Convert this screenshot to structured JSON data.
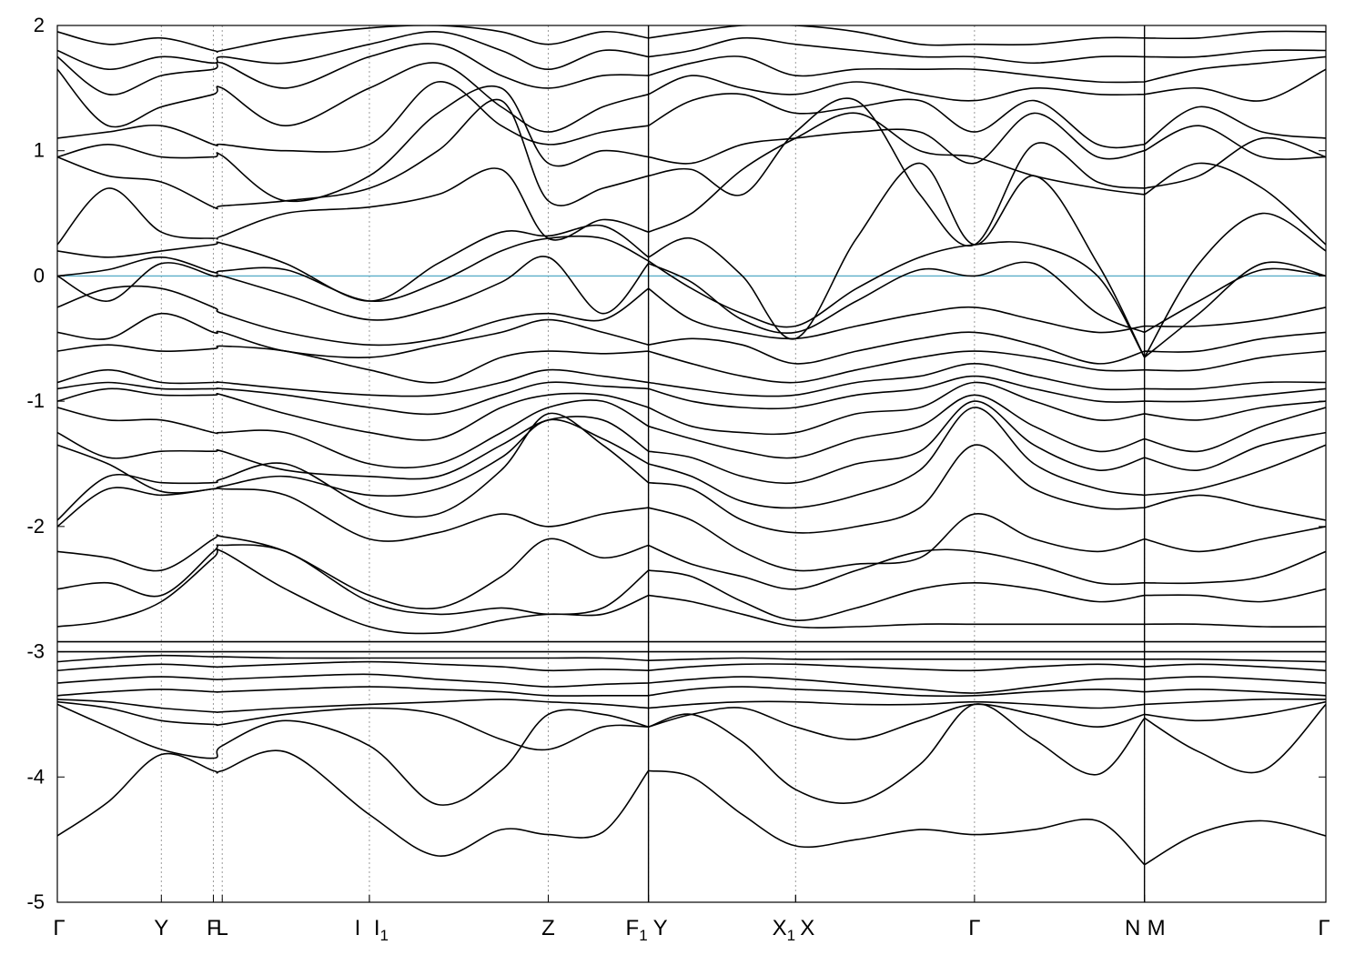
{
  "chart_data": {
    "type": "line",
    "title": "",
    "xlabel": "",
    "ylabel": "",
    "ylim": [
      -5,
      2
    ],
    "yticks": [
      2,
      1,
      0,
      -1,
      -2,
      -3,
      -4,
      -5
    ],
    "ytick_labels": [
      "2",
      "1",
      "0",
      "-1",
      "-2",
      "-3",
      "-4",
      "-5"
    ],
    "fermi_level": 0,
    "fermi_color": "#5aaec8",
    "band_color": "#000000",
    "grid": false,
    "high_symmetry_points": [
      {
        "label": "Γ",
        "sub": "",
        "x": 0.0
      },
      {
        "label": "Y",
        "sub": "",
        "x": 0.082
      },
      {
        "label": "F",
        "sub": "",
        "x": 0.123
      },
      {
        "label": "L",
        "sub": "",
        "x": 0.13
      },
      {
        "label": "I",
        "sub": "",
        "x": 0.246
      },
      {
        "label": "I",
        "sub": "1",
        "x": 0.246
      },
      {
        "label": "Z",
        "sub": "",
        "x": 0.387
      },
      {
        "label": "F",
        "sub": "1",
        "x": 0.466
      },
      {
        "label": "Y",
        "sub": "",
        "x": 0.466
      },
      {
        "label": "X",
        "sub": "1",
        "x": 0.582
      },
      {
        "label": "X",
        "sub": "",
        "x": 0.582
      },
      {
        "label": "Γ",
        "sub": "",
        "x": 0.723
      },
      {
        "label": "N",
        "sub": "",
        "x": 0.857
      },
      {
        "label": "M",
        "sub": "",
        "x": 0.857
      },
      {
        "label": "Γ",
        "sub": "",
        "x": 1.0
      }
    ],
    "segment_breaks": [
      0.466,
      0.857
    ],
    "x_sample": [
      0.0,
      0.04,
      0.082,
      0.123,
      0.13,
      0.18,
      0.246,
      0.3,
      0.35,
      0.387,
      0.43,
      0.466,
      0.5,
      0.54,
      0.582,
      0.63,
      0.68,
      0.723,
      0.77,
      0.82,
      0.857,
      0.9,
      0.95,
      1.0
    ],
    "series": [
      {
        "values": [
          -4.47,
          -4.2,
          -3.82,
          -3.95,
          -3.95,
          -3.8,
          -4.3,
          -4.63,
          -4.42,
          -4.46,
          -4.44,
          -3.95,
          -4.0,
          -4.3,
          -4.55,
          -4.5,
          -4.42,
          -4.46,
          -4.42,
          -4.35,
          -4.7,
          -4.45,
          -4.35,
          -4.47
        ]
      },
      {
        "values": [
          -3.42,
          -3.6,
          -3.78,
          -3.85,
          -3.75,
          -3.55,
          -3.75,
          -4.22,
          -3.95,
          -3.5,
          -3.5,
          -3.6,
          -3.5,
          -3.72,
          -4.1,
          -4.2,
          -3.9,
          -3.42,
          -3.7,
          -3.98,
          -3.53,
          -3.8,
          -3.95,
          -3.42
        ]
      },
      {
        "values": [
          -3.4,
          -3.45,
          -3.55,
          -3.58,
          -3.58,
          -3.5,
          -3.45,
          -3.5,
          -3.7,
          -3.78,
          -3.6,
          -3.6,
          -3.5,
          -3.45,
          -3.6,
          -3.7,
          -3.55,
          -3.42,
          -3.5,
          -3.6,
          -3.5,
          -3.55,
          -3.5,
          -3.4
        ]
      },
      {
        "values": [
          -3.38,
          -3.4,
          -3.45,
          -3.48,
          -3.48,
          -3.45,
          -3.42,
          -3.4,
          -3.38,
          -3.4,
          -3.42,
          -3.45,
          -3.42,
          -3.4,
          -3.4,
          -3.42,
          -3.42,
          -3.4,
          -3.42,
          -3.45,
          -3.42,
          -3.4,
          -3.38,
          -3.38
        ]
      },
      {
        "values": [
          -3.35,
          -3.32,
          -3.3,
          -3.32,
          -3.32,
          -3.3,
          -3.28,
          -3.3,
          -3.32,
          -3.35,
          -3.35,
          -3.35,
          -3.3,
          -3.28,
          -3.3,
          -3.32,
          -3.35,
          -3.35,
          -3.32,
          -3.3,
          -3.32,
          -3.3,
          -3.32,
          -3.35
        ]
      },
      {
        "values": [
          -3.25,
          -3.22,
          -3.2,
          -3.22,
          -3.22,
          -3.2,
          -3.18,
          -3.22,
          -3.25,
          -3.28,
          -3.26,
          -3.25,
          -3.22,
          -3.2,
          -3.22,
          -3.26,
          -3.3,
          -3.33,
          -3.28,
          -3.22,
          -3.22,
          -3.2,
          -3.22,
          -3.25
        ]
      },
      {
        "values": [
          -3.15,
          -3.12,
          -3.1,
          -3.12,
          -3.12,
          -3.1,
          -3.08,
          -3.1,
          -3.12,
          -3.15,
          -3.14,
          -3.15,
          -3.12,
          -3.1,
          -3.1,
          -3.12,
          -3.14,
          -3.15,
          -3.12,
          -3.1,
          -3.12,
          -3.1,
          -3.12,
          -3.15
        ]
      },
      {
        "values": [
          -3.08,
          -3.05,
          -3.03,
          -3.04,
          -3.04,
          -3.05,
          -3.05,
          -3.05,
          -3.05,
          -3.05,
          -3.05,
          -3.07,
          -3.06,
          -3.05,
          -3.06,
          -3.06,
          -3.06,
          -3.06,
          -3.06,
          -3.06,
          -3.06,
          -3.06,
          -3.07,
          -3.08
        ]
      },
      {
        "values": [
          -3.0,
          -3.0,
          -3.0,
          -3.0,
          -3.0,
          -3.0,
          -3.0,
          -3.0,
          -3.0,
          -3.0,
          -3.0,
          -3.0,
          -3.0,
          -3.0,
          -3.0,
          -3.0,
          -3.0,
          -3.0,
          -3.0,
          -3.0,
          -3.0,
          -3.0,
          -3.0,
          -3.0
        ]
      },
      {
        "values": [
          -2.92,
          -2.92,
          -2.92,
          -2.92,
          -2.92,
          -2.92,
          -2.92,
          -2.92,
          -2.92,
          -2.92,
          -2.92,
          -2.92,
          -2.92,
          -2.92,
          -2.92,
          -2.92,
          -2.92,
          -2.92,
          -2.92,
          -2.92,
          -2.92,
          -2.92,
          -2.92,
          -2.92
        ]
      },
      {
        "values": [
          -2.8,
          -2.75,
          -2.6,
          -2.25,
          -2.2,
          -2.5,
          -2.8,
          -2.85,
          -2.75,
          -2.7,
          -2.7,
          -2.55,
          -2.6,
          -2.7,
          -2.8,
          -2.8,
          -2.78,
          -2.78,
          -2.78,
          -2.78,
          -2.78,
          -2.78,
          -2.8,
          -2.8
        ]
      },
      {
        "values": [
          -2.5,
          -2.45,
          -2.55,
          -2.2,
          -2.15,
          -2.2,
          -2.6,
          -2.7,
          -2.65,
          -2.7,
          -2.65,
          -2.35,
          -2.4,
          -2.6,
          -2.75,
          -2.65,
          -2.5,
          -2.45,
          -2.5,
          -2.6,
          -2.55,
          -2.55,
          -2.6,
          -2.5
        ]
      },
      {
        "values": [
          -2.2,
          -2.25,
          -2.35,
          -2.1,
          -2.08,
          -2.2,
          -2.55,
          -2.65,
          -2.4,
          -2.1,
          -2.25,
          -2.15,
          -2.3,
          -2.4,
          -2.5,
          -2.35,
          -2.2,
          -2.2,
          -2.3,
          -2.45,
          -2.45,
          -2.45,
          -2.4,
          -2.2
        ]
      },
      {
        "values": [
          -2.0,
          -1.7,
          -1.75,
          -1.7,
          -1.7,
          -1.75,
          -2.1,
          -2.05,
          -1.9,
          -2.0,
          -1.9,
          -1.85,
          -1.95,
          -2.2,
          -2.35,
          -2.3,
          -2.25,
          -1.9,
          -2.1,
          -2.2,
          -2.1,
          -2.2,
          -2.1,
          -2.0
        ]
      },
      {
        "values": [
          -1.95,
          -1.6,
          -1.65,
          -1.65,
          -1.62,
          -1.5,
          -1.85,
          -1.9,
          -1.55,
          -1.1,
          -1.35,
          -1.65,
          -1.7,
          -1.95,
          -2.05,
          -2.0,
          -1.85,
          -1.35,
          -1.7,
          -1.85,
          -1.85,
          -1.75,
          -1.85,
          -1.95
        ]
      },
      {
        "values": [
          -1.35,
          -1.5,
          -1.72,
          -1.7,
          -1.68,
          -1.6,
          -1.75,
          -1.7,
          -1.45,
          -1.15,
          -1.3,
          -1.5,
          -1.6,
          -1.8,
          -1.85,
          -1.75,
          -1.55,
          -1.05,
          -1.5,
          -1.7,
          -1.75,
          -1.7,
          -1.55,
          -1.35
        ]
      },
      {
        "values": [
          -1.25,
          -1.45,
          -1.4,
          -1.4,
          -1.4,
          -1.55,
          -1.6,
          -1.6,
          -1.35,
          -1.15,
          -1.15,
          -1.4,
          -1.45,
          -1.6,
          -1.65,
          -1.5,
          -1.4,
          -1.0,
          -1.35,
          -1.55,
          -1.45,
          -1.55,
          -1.35,
          -1.25
        ]
      },
      {
        "values": [
          -1.05,
          -1.15,
          -1.15,
          -1.25,
          -1.25,
          -1.25,
          -1.5,
          -1.5,
          -1.25,
          -1.05,
          -1.0,
          -1.2,
          -1.3,
          -1.4,
          -1.45,
          -1.3,
          -1.2,
          -0.95,
          -1.2,
          -1.4,
          -1.3,
          -1.4,
          -1.2,
          -1.05
        ]
      },
      {
        "values": [
          -1.0,
          -0.9,
          -0.95,
          -0.95,
          -0.95,
          -1.1,
          -1.25,
          -1.3,
          -1.05,
          -0.95,
          -0.95,
          -1.05,
          -1.2,
          -1.25,
          -1.25,
          -1.1,
          -1.05,
          -0.85,
          -1.0,
          -1.15,
          -1.1,
          -1.15,
          -1.05,
          -1.0
        ]
      },
      {
        "values": [
          -0.9,
          -0.85,
          -0.9,
          -0.9,
          -0.9,
          -0.95,
          -1.05,
          -1.1,
          -0.95,
          -0.85,
          -0.88,
          -0.9,
          -1.0,
          -1.05,
          -1.05,
          -0.95,
          -0.9,
          -0.8,
          -0.9,
          -1.0,
          -1.0,
          -1.0,
          -0.95,
          -0.9
        ]
      },
      {
        "values": [
          -0.85,
          -0.75,
          -0.85,
          -0.85,
          -0.85,
          -0.9,
          -0.95,
          -0.95,
          -0.85,
          -0.75,
          -0.8,
          -0.85,
          -0.9,
          -0.95,
          -0.95,
          -0.85,
          -0.8,
          -0.7,
          -0.8,
          -0.9,
          -0.9,
          -0.9,
          -0.85,
          -0.85
        ]
      },
      {
        "values": [
          -0.6,
          -0.55,
          -0.6,
          -0.58,
          -0.56,
          -0.6,
          -0.75,
          -0.85,
          -0.65,
          -0.6,
          -0.62,
          -0.6,
          -0.7,
          -0.8,
          -0.85,
          -0.75,
          -0.65,
          -0.6,
          -0.65,
          -0.75,
          -0.75,
          -0.75,
          -0.65,
          -0.6
        ]
      },
      {
        "values": [
          -0.45,
          -0.5,
          -0.3,
          -0.45,
          -0.45,
          -0.6,
          -0.65,
          -0.55,
          -0.45,
          -0.35,
          -0.45,
          -0.55,
          -0.5,
          -0.55,
          -0.7,
          -0.6,
          -0.5,
          -0.45,
          -0.55,
          -0.7,
          -0.6,
          -0.6,
          -0.5,
          -0.45
        ]
      },
      {
        "values": [
          -0.25,
          -0.1,
          -0.1,
          -0.25,
          -0.3,
          -0.45,
          -0.55,
          -0.5,
          -0.35,
          -0.3,
          -0.35,
          -0.1,
          -0.35,
          -0.45,
          -0.5,
          -0.4,
          -0.3,
          -0.25,
          -0.35,
          -0.45,
          -0.4,
          -0.4,
          -0.35,
          -0.25
        ]
      },
      {
        "values": [
          0.0,
          -0.2,
          0.1,
          0.0,
          0.0,
          -0.15,
          -0.35,
          -0.25,
          -0.05,
          0.15,
          -0.3,
          0.1,
          -0.05,
          -0.35,
          -0.45,
          -0.2,
          0.05,
          0.0,
          0.1,
          -0.3,
          -0.45,
          -0.2,
          0.05,
          0.0
        ]
      },
      {
        "values": [
          0.0,
          0.05,
          0.15,
          0.03,
          0.04,
          0.05,
          -0.2,
          -0.05,
          0.2,
          0.3,
          0.3,
          0.12,
          -0.1,
          -0.3,
          -0.4,
          -0.1,
          0.15,
          0.25,
          0.25,
          0.0,
          -0.65,
          -0.3,
          0.1,
          0.0
        ]
      },
      {
        "values": [
          0.2,
          0.15,
          0.2,
          0.25,
          0.26,
          0.1,
          -0.2,
          0.1,
          0.35,
          0.32,
          0.4,
          0.15,
          0.3,
          0.0,
          -0.5,
          0.3,
          0.9,
          0.25,
          0.8,
          0.1,
          -0.65,
          0.1,
          0.5,
          0.2
        ]
      },
      {
        "values": [
          0.25,
          0.7,
          0.35,
          0.3,
          0.32,
          0.5,
          0.55,
          0.65,
          0.85,
          0.3,
          0.45,
          0.35,
          0.5,
          0.85,
          1.1,
          1.3,
          1.0,
          0.95,
          0.8,
          0.7,
          0.65,
          0.9,
          0.7,
          0.25
        ]
      },
      {
        "values": [
          0.95,
          0.8,
          0.75,
          0.55,
          0.56,
          0.6,
          0.7,
          1.0,
          1.4,
          0.6,
          0.7,
          0.8,
          0.85,
          0.65,
          1.15,
          1.4,
          0.65,
          0.25,
          1.05,
          0.75,
          0.7,
          0.8,
          1.1,
          0.95
        ]
      },
      {
        "values": [
          0.95,
          1.05,
          0.95,
          0.95,
          0.96,
          0.6,
          0.8,
          1.3,
          1.5,
          0.9,
          1.0,
          0.95,
          0.9,
          1.05,
          1.1,
          1.15,
          1.15,
          0.9,
          1.3,
          0.95,
          1.0,
          1.2,
          0.95,
          0.95
        ]
      },
      {
        "values": [
          1.1,
          1.15,
          1.2,
          1.05,
          1.05,
          1.0,
          1.05,
          1.55,
          1.2,
          1.05,
          1.15,
          1.2,
          1.4,
          1.45,
          1.3,
          1.35,
          1.4,
          1.15,
          1.4,
          1.05,
          1.05,
          1.35,
          1.15,
          1.1
        ]
      },
      {
        "values": [
          1.65,
          1.2,
          1.35,
          1.45,
          1.5,
          1.2,
          1.5,
          1.7,
          1.35,
          1.15,
          1.35,
          1.45,
          1.6,
          1.5,
          1.45,
          1.55,
          1.45,
          1.4,
          1.5,
          1.45,
          1.45,
          1.5,
          1.4,
          1.65
        ]
      },
      {
        "values": [
          1.75,
          1.45,
          1.6,
          1.65,
          1.7,
          1.5,
          1.75,
          1.85,
          1.6,
          1.5,
          1.6,
          1.6,
          1.7,
          1.75,
          1.6,
          1.65,
          1.65,
          1.65,
          1.6,
          1.55,
          1.55,
          1.65,
          1.7,
          1.75
        ]
      },
      {
        "values": [
          1.8,
          1.65,
          1.75,
          1.7,
          1.75,
          1.7,
          1.85,
          1.95,
          1.8,
          1.65,
          1.8,
          1.75,
          1.8,
          1.9,
          1.85,
          1.8,
          1.75,
          1.75,
          1.7,
          1.75,
          1.75,
          1.75,
          1.8,
          1.8
        ]
      },
      {
        "values": [
          1.95,
          1.85,
          1.9,
          1.8,
          1.8,
          1.9,
          1.98,
          2.0,
          1.95,
          1.85,
          1.95,
          1.9,
          1.95,
          2.0,
          2.0,
          1.95,
          1.85,
          1.85,
          1.85,
          1.9,
          1.9,
          1.9,
          1.95,
          1.95
        ]
      }
    ]
  }
}
